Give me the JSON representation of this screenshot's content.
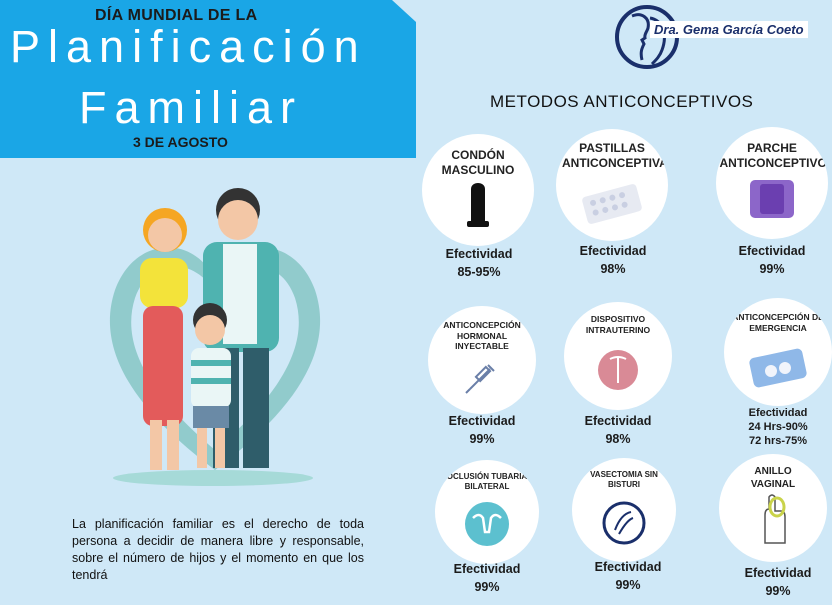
{
  "banner": {
    "top": "DÍA MUNDIAL DE LA",
    "title_line1": "Planificación",
    "title_line2": "Familiar",
    "date": "3 DE AGOSTO"
  },
  "logo": {
    "text": "Dra. Gema García Coeto",
    "icon": "woman-profile-logo"
  },
  "section_title": "METODOS ANTICONCEPTIVOS",
  "description": "La planificación familiar es el derecho de toda persona a decidir de manera libre y responsable, sobre el número de hijos y el momento en que los tendrá",
  "effectiveness_label": "Efectividad",
  "methods": [
    {
      "title": "CONDÓN MASCULINO",
      "icon": "condom-icon",
      "values": [
        "85-95%"
      ]
    },
    {
      "title": "PASTILLAS ANTICONCEPTIVAS",
      "icon": "pill-pack-icon",
      "values": [
        "98%"
      ]
    },
    {
      "title": "PARCHE ANTICONCEPTIVO",
      "icon": "patch-icon",
      "values": [
        "99%"
      ]
    },
    {
      "title": "ANTICONCEPCIÓN HORMONAL INYECTABLE",
      "icon": "syringe-icon",
      "values": [
        "99%"
      ]
    },
    {
      "title": "DISPOSITIVO INTRAUTERINO",
      "icon": "iud-icon",
      "values": [
        "98%"
      ]
    },
    {
      "title": "ANTICONCEPCIÓN DE EMERGENCIA",
      "icon": "emergency-pill-icon",
      "values": [
        "24 Hrs-90%",
        "72 hrs-75%"
      ]
    },
    {
      "title": "OCLUSIÓN TUBARIA BILATERAL",
      "icon": "uterus-icon",
      "values": [
        "99%"
      ]
    },
    {
      "title": "VASECTOMIA SIN BISTURI",
      "icon": "vasectomy-icon",
      "values": [
        "99%"
      ]
    },
    {
      "title": "ANILLO VAGINAL",
      "icon": "ring-hand-icon",
      "values": [
        "99%"
      ]
    }
  ],
  "colors": {
    "background": "#cfe8f7",
    "banner": "#1aa6e6",
    "logo_navy": "#1a2f6b"
  }
}
